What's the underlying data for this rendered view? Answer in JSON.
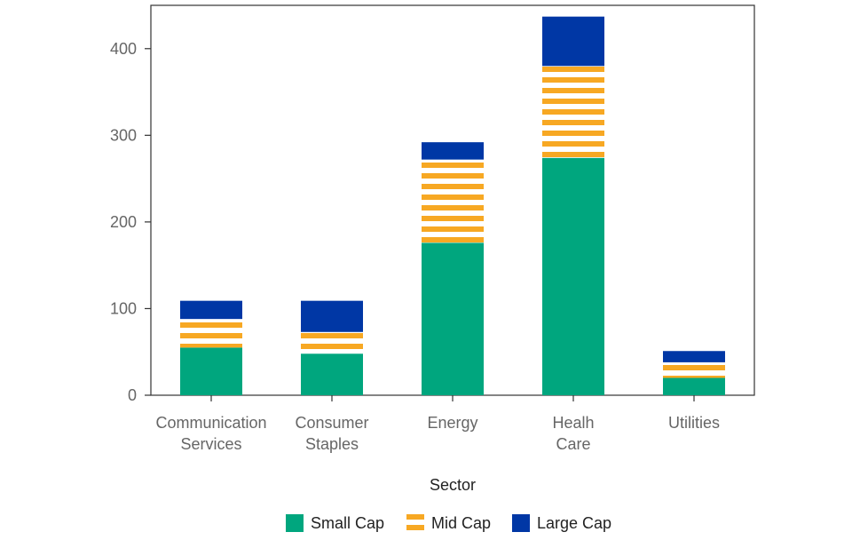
{
  "chart_data": {
    "type": "bar",
    "stacked": true,
    "title": "",
    "xlabel": "Sector",
    "ylabel": "",
    "ylim": [
      0,
      450
    ],
    "yticks": [
      0,
      100,
      200,
      300,
      400
    ],
    "categories": [
      [
        "Communication",
        "Services"
      ],
      [
        "Consumer",
        "Staples"
      ],
      [
        "Energy"
      ],
      [
        "Healh",
        "Care"
      ],
      [
        "Utilities"
      ]
    ],
    "series": [
      {
        "name": "Small Cap",
        "values": [
          55,
          48,
          176,
          274,
          20
        ],
        "color": "#00a67e",
        "pattern": "solid"
      },
      {
        "name": "Mid Cap",
        "values": [
          33,
          25,
          96,
          106,
          18
        ],
        "color": "#f7a823",
        "pattern": "horizontal-stripes"
      },
      {
        "name": "Large Cap",
        "values": [
          21,
          36,
          20,
          57,
          13
        ],
        "color": "#0037a5",
        "pattern": "solid"
      }
    ],
    "grid": false,
    "legend_position": "bottom-center"
  }
}
